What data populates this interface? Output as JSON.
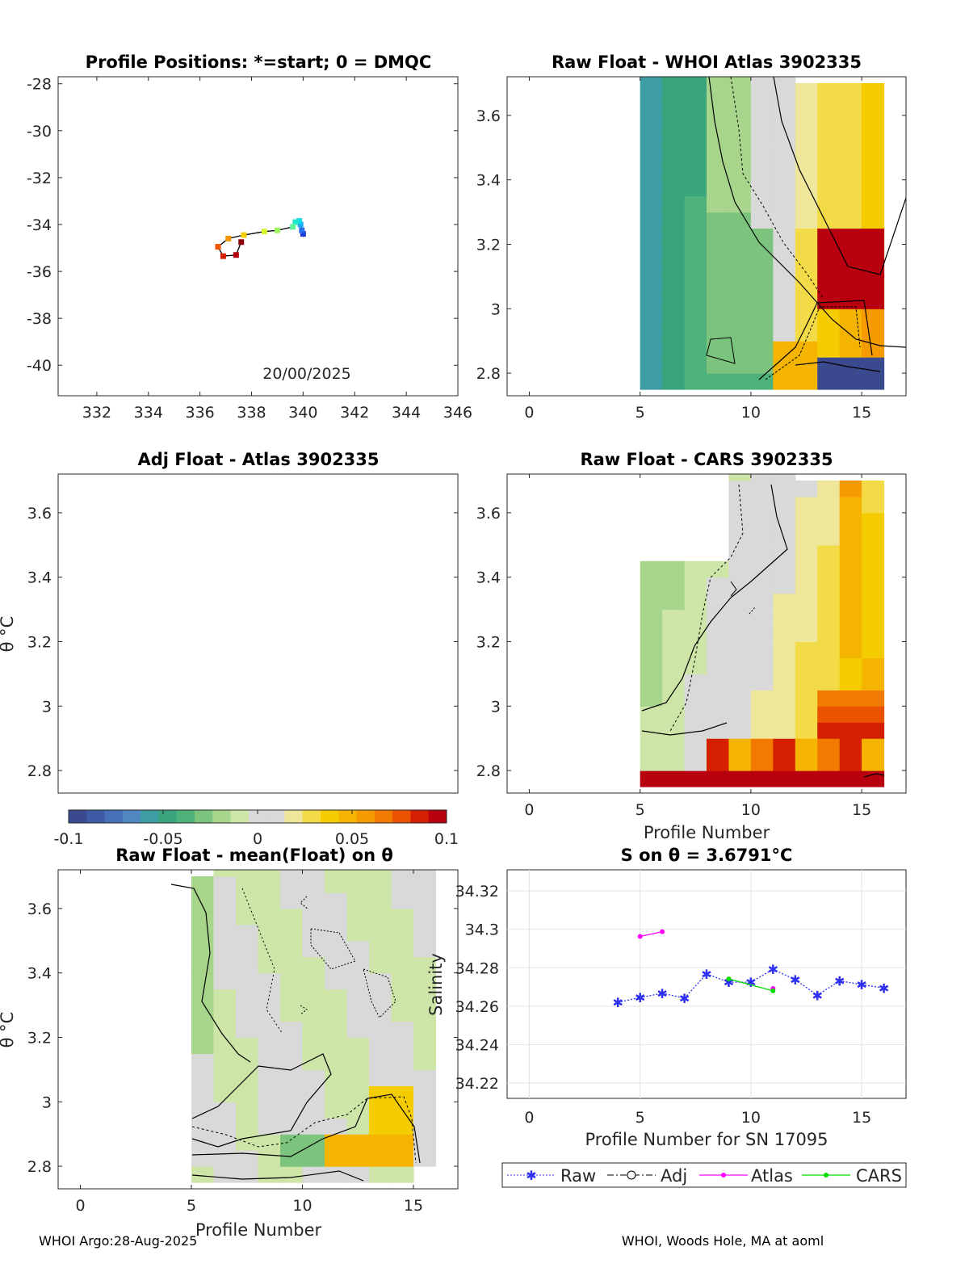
{
  "figure": {
    "footer_left": "WHOI Argo:28-Aug-2025",
    "footer_right": "WHOI, Woods Hole, MA at aoml",
    "colorbar": {
      "min": -0.1,
      "max": 0.1,
      "tick_labels": [
        "-0.1",
        "-0.05",
        "0",
        "0.05",
        "0.1"
      ],
      "colors": [
        "#3b4a8f",
        "#3e5ca6",
        "#4671b8",
        "#4f88c0",
        "#3f9ea4",
        "#3aa57c",
        "#4fb27a",
        "#7cc47e",
        "#a7d58b",
        "#cde5a6",
        "#d9d9d9",
        "#d9d9d9",
        "#eee69a",
        "#f2db47",
        "#f5cc00",
        "#f5b400",
        "#f59a00",
        "#f27a00",
        "#eb5200",
        "#d42000",
        "#b8000f"
      ]
    }
  },
  "chart_data": [
    {
      "id": "positions",
      "type": "scatter",
      "title": "Profile Positions: *=start; 0 = DMQC",
      "annotation": "20/00/2025",
      "xlim": [
        330.5,
        346
      ],
      "ylim": [
        -41.3,
        -27.7
      ],
      "xticks": [
        "332",
        "334",
        "336",
        "338",
        "340",
        "342",
        "344",
        "346"
      ],
      "yticks": [
        "-28",
        "-30",
        "-32",
        "-34",
        "-36",
        "-38",
        "-40"
      ],
      "track": [
        {
          "lon": 340.0,
          "lat": -34.4,
          "color": "#1f3bd6"
        },
        {
          "lon": 339.95,
          "lat": -34.25,
          "color": "#2b6ef0"
        },
        {
          "lon": 339.9,
          "lat": -34.0,
          "color": "#1ea8f5"
        },
        {
          "lon": 339.85,
          "lat": -33.85,
          "color": "#12d9e8"
        },
        {
          "lon": 339.7,
          "lat": -33.9,
          "color": "#20e8c8"
        },
        {
          "lon": 339.6,
          "lat": -34.1,
          "color": "#5ff59a"
        },
        {
          "lon": 339.0,
          "lat": -34.25,
          "color": "#9ef55f"
        },
        {
          "lon": 338.5,
          "lat": -34.3,
          "color": "#d8f530"
        },
        {
          "lon": 337.7,
          "lat": -34.45,
          "color": "#f5d000"
        },
        {
          "lon": 337.1,
          "lat": -34.6,
          "color": "#f59500"
        },
        {
          "lon": 336.7,
          "lat": -34.95,
          "color": "#f05500"
        },
        {
          "lon": 336.9,
          "lat": -35.35,
          "color": "#d42000"
        },
        {
          "lon": 337.4,
          "lat": -35.3,
          "color": "#b00010"
        },
        {
          "lon": 337.6,
          "lat": -34.75,
          "color": "#8f0008"
        }
      ]
    },
    {
      "id": "whoi",
      "type": "heatmap",
      "title": "Raw Float - WHOI Atlas  3902335",
      "xlim": [
        -1,
        17
      ],
      "ylim": [
        2.73,
        3.72
      ],
      "xticks": [
        "0",
        "5",
        "10",
        "15"
      ],
      "yticks": [
        "2.8",
        "3",
        "3.2",
        "3.4",
        "3.6"
      ]
    },
    {
      "id": "adj",
      "type": "heatmap",
      "title": "Adj Float - Atlas  3902335",
      "ylabel": "θ °C",
      "xlim": [
        -1,
        17
      ],
      "ylim": [
        2.73,
        3.72
      ],
      "yticks": [
        "2.8",
        "3",
        "3.2",
        "3.4",
        "3.6"
      ]
    },
    {
      "id": "cars",
      "type": "heatmap",
      "title": "Raw Float - CARS  3902335",
      "xlabel": "Profile Number",
      "xlim": [
        -1,
        17
      ],
      "ylim": [
        2.73,
        3.72
      ],
      "xticks": [
        "0",
        "5",
        "10",
        "15"
      ],
      "yticks": [
        "2.8",
        "3",
        "3.2",
        "3.4",
        "3.6"
      ]
    },
    {
      "id": "mean",
      "type": "heatmap",
      "title": "Raw Float - mean(Float) on θ",
      "xlabel": "Profile Number",
      "ylabel": "θ °C",
      "xlim": [
        -1,
        17
      ],
      "ylim": [
        2.73,
        3.72
      ],
      "xticks": [
        "0",
        "5",
        "10",
        "15"
      ],
      "yticks": [
        "2.8",
        "3",
        "3.2",
        "3.4",
        "3.6"
      ]
    },
    {
      "id": "sal",
      "type": "line",
      "title": "S on θ = 3.6791°C",
      "xlabel": "Profile Number for SN 17095",
      "ylabel": "Salinity",
      "xlim": [
        -1,
        17
      ],
      "ylim": [
        34.212,
        34.331
      ],
      "xticks": [
        "0",
        "5",
        "10",
        "15"
      ],
      "yticks": [
        "34.22",
        "34.24",
        "34.26",
        "34.28",
        "34.3",
        "34.32"
      ],
      "series": [
        {
          "name": "Raw",
          "x": [
            4,
            5,
            6,
            7,
            8,
            9,
            10,
            11,
            12,
            13,
            14,
            15,
            16
          ],
          "y": [
            34.262,
            34.2645,
            34.2667,
            34.2642,
            34.2768,
            34.2725,
            34.2725,
            34.2792,
            34.2738,
            34.2657,
            34.2732,
            34.2712,
            34.2695
          ]
        },
        {
          "name": "Adj",
          "x": [],
          "y": []
        },
        {
          "name": "Atlas",
          "x": [
            5,
            6,
            11
          ],
          "y": [
            34.2963,
            34.2988,
            34.2692
          ]
        },
        {
          "name": "CARS",
          "x": [
            9,
            11
          ],
          "y": [
            34.2742,
            34.268
          ]
        }
      ]
    }
  ]
}
